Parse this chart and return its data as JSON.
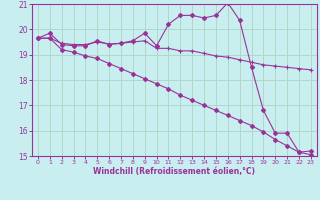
{
  "xlabel": "Windchill (Refroidissement éolien,°C)",
  "xlim": [
    -0.5,
    23.5
  ],
  "ylim": [
    15,
    21
  ],
  "yticks": [
    15,
    16,
    17,
    18,
    19,
    20,
    21
  ],
  "xticks": [
    0,
    1,
    2,
    3,
    4,
    5,
    6,
    7,
    8,
    9,
    10,
    11,
    12,
    13,
    14,
    15,
    16,
    17,
    18,
    19,
    20,
    21,
    22,
    23
  ],
  "background_color": "#c8eef0",
  "grid_color": "#b0d8c8",
  "line_color": "#993399",
  "line1_x": [
    0,
    1,
    2,
    3,
    4,
    5,
    6,
    7,
    8,
    9,
    10,
    11,
    12,
    13,
    14,
    15,
    16,
    17,
    18,
    19,
    20,
    21,
    22,
    23
  ],
  "line1_y": [
    19.65,
    19.85,
    19.4,
    19.35,
    19.35,
    19.55,
    19.4,
    19.45,
    19.55,
    19.85,
    19.35,
    20.2,
    20.55,
    20.55,
    20.45,
    20.55,
    21.05,
    20.35,
    18.5,
    16.8,
    15.9,
    15.9,
    15.15,
    15.2
  ],
  "line2_x": [
    0,
    1,
    2,
    3,
    4,
    5,
    6,
    7,
    8,
    9,
    10,
    11,
    12,
    13,
    14,
    15,
    16,
    17,
    18,
    19,
    20,
    21,
    22,
    23
  ],
  "line2_y": [
    19.65,
    19.65,
    19.45,
    19.4,
    19.4,
    19.5,
    19.42,
    19.45,
    19.5,
    19.55,
    19.25,
    19.25,
    19.15,
    19.15,
    19.05,
    18.95,
    18.9,
    18.8,
    18.7,
    18.6,
    18.55,
    18.5,
    18.45,
    18.4
  ],
  "line3_x": [
    0,
    1,
    2,
    3,
    4,
    5,
    6,
    7,
    8,
    9,
    10,
    11,
    12,
    13,
    14,
    15,
    16,
    17,
    18,
    19,
    20,
    21,
    22,
    23
  ],
  "line3_y": [
    19.65,
    19.65,
    19.2,
    19.1,
    18.95,
    18.85,
    18.65,
    18.45,
    18.25,
    18.05,
    17.85,
    17.65,
    17.4,
    17.2,
    17.0,
    16.8,
    16.6,
    16.4,
    16.2,
    15.95,
    15.65,
    15.4,
    15.15,
    15.05
  ]
}
